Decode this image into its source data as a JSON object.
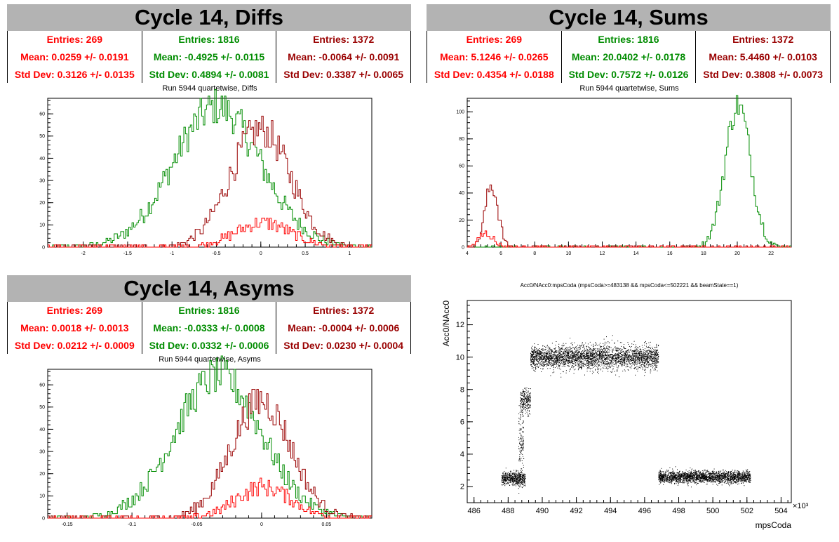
{
  "colors": {
    "red": "#ff0000",
    "green": "#008c00",
    "darkred": "#990000",
    "title_bg": "#b3b3b3"
  },
  "panels": [
    {
      "title": "Cycle 14, Diffs",
      "stats": [
        {
          "entries": "Entries: 269",
          "mean": "Mean: 0.0259 +/- 0.0191",
          "std": "Std Dev: 0.3126 +/- 0.0135",
          "color": "#ff0000"
        },
        {
          "entries": "Entries: 1816",
          "mean": "Mean: -0.4925 +/- 0.0115",
          "std": "Std Dev: 0.4894 +/- 0.0081",
          "color": "#008c00"
        },
        {
          "entries": "Entries: 1372",
          "mean": "Mean: -0.0064 +/- 0.0091",
          "std": "Std Dev: 0.3387 +/- 0.0065",
          "color": "#990000"
        }
      ],
      "subtitle": "Run 5944 quartetwise, Diffs"
    },
    {
      "title": "Cycle 14, Sums",
      "stats": [
        {
          "entries": "Entries: 269",
          "mean": "Mean: 5.1246 +/- 0.0265",
          "std": "Std Dev: 0.4354 +/- 0.0188",
          "color": "#ff0000"
        },
        {
          "entries": "Entries: 1816",
          "mean": "Mean: 20.0402 +/- 0.0178",
          "std": "Std Dev: 0.7572 +/- 0.0126",
          "color": "#008c00"
        },
        {
          "entries": "Entries: 1372",
          "mean": "Mean: 5.4460 +/- 0.0103",
          "std": "Std Dev: 0.3808 +/- 0.0073",
          "color": "#990000"
        }
      ],
      "subtitle": "Run 5944 quartetwise, Sums"
    },
    {
      "title": "Cycle 14, Asyms",
      "stats": [
        {
          "entries": "Entries: 269",
          "mean": "Mean: 0.0018 +/- 0.0013",
          "std": "Std Dev: 0.0212 +/- 0.0009",
          "color": "#ff0000"
        },
        {
          "entries": "Entries: 1816",
          "mean": "Mean: -0.0333 +/- 0.0008",
          "std": "Std Dev: 0.0332 +/- 0.0006",
          "color": "#008c00"
        },
        {
          "entries": "Entries: 1372",
          "mean": "Mean: -0.0004 +/- 0.0006",
          "std": "Std Dev: 0.0230 +/- 0.0004",
          "color": "#990000"
        }
      ],
      "subtitle": "Run 5944 quartetwise, Asyms"
    }
  ],
  "chart_data": [
    {
      "type": "histogram",
      "title": "Run 5944 quartetwise, Diffs",
      "xlim": [
        -2.4,
        1.25
      ],
      "ylim": [
        0,
        67
      ],
      "xticks": [
        -2,
        -1.5,
        -1,
        -0.5,
        0,
        0.5,
        1
      ],
      "yticks": [
        0,
        10,
        20,
        30,
        40,
        50,
        60
      ],
      "series": [
        {
          "color": "#008c00",
          "entries": 1816,
          "mean": -0.4925,
          "std": 0.4894,
          "peak": 63
        },
        {
          "color": "#990000",
          "entries": 1372,
          "mean": -0.0064,
          "std": 0.3387,
          "peak": 53
        },
        {
          "color": "#ff0000",
          "entries": 269,
          "mean": 0.0259,
          "std": 0.3126,
          "peak": 11
        }
      ]
    },
    {
      "type": "histogram",
      "title": "Run 5944 quartetwise, Sums",
      "xlim": [
        4,
        23.2
      ],
      "ylim": [
        0,
        110
      ],
      "xticks": [
        4,
        6,
        8,
        10,
        12,
        14,
        16,
        18,
        20,
        22
      ],
      "yticks": [
        0,
        20,
        40,
        60,
        80,
        100
      ],
      "series": [
        {
          "color": "#008c00",
          "entries": 1816,
          "mean": 20.0402,
          "std": 0.7572,
          "peak": 105
        },
        {
          "color": "#990000",
          "entries": 1372,
          "mean": 5.446,
          "std": 0.3808,
          "peak": 46
        },
        {
          "color": "#ff0000",
          "entries": 269,
          "mean": 5.1246,
          "std": 0.4354,
          "peak": 10
        }
      ]
    },
    {
      "type": "histogram",
      "title": "Run 5944 quartetwise, Asyms",
      "xlim": [
        -0.165,
        0.085
      ],
      "ylim": [
        0,
        67
      ],
      "xticks": [
        -0.15,
        -0.1,
        -0.05,
        0,
        0.05
      ],
      "yticks": [
        0,
        10,
        20,
        30,
        40,
        50,
        60
      ],
      "series": [
        {
          "color": "#008c00",
          "entries": 1816,
          "mean": -0.0333,
          "std": 0.0332,
          "peak": 64
        },
        {
          "color": "#990000",
          "entries": 1372,
          "mean": -0.0004,
          "std": 0.023,
          "peak": 53
        },
        {
          "color": "#ff0000",
          "entries": 269,
          "mean": 0.0018,
          "std": 0.0212,
          "peak": 14
        }
      ]
    },
    {
      "type": "scatter",
      "title": "Acc0/NAcc0:mpsCoda (mpsCoda>=483138 && mpsCoda<=502221 && beamState==1)",
      "xlabel": "mpsCoda",
      "ylabel": "Acc0/NAcc0",
      "x_multiplier_label": "×10³",
      "xlim": [
        485.6,
        504.6
      ],
      "ylim": [
        1,
        13.5
      ],
      "xticks": [
        486,
        488,
        490,
        492,
        494,
        496,
        498,
        500,
        502,
        504
      ],
      "yticks": [
        2,
        4,
        6,
        8,
        10,
        12
      ],
      "clusters": [
        {
          "x": [
            487.6,
            489.0
          ],
          "y_center": 2.5,
          "y_spread": 0.35
        },
        {
          "x": [
            488.7,
            489.3
          ],
          "y_center": 7.3,
          "y_spread": 0.6
        },
        {
          "x": [
            488.6,
            488.9
          ],
          "y_center": 4.8,
          "y_spread": 1.6
        },
        {
          "x": [
            489.3,
            496.8
          ],
          "y_center": 10.0,
          "y_spread": 0.6
        },
        {
          "x": [
            496.8,
            502.2
          ],
          "y_center": 2.6,
          "y_spread": 0.3
        }
      ]
    }
  ]
}
